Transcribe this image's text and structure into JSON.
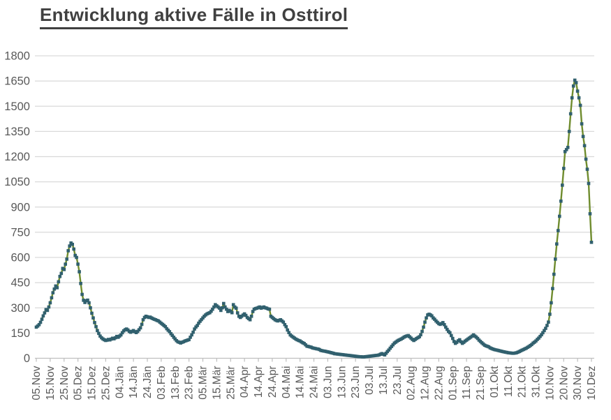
{
  "title": "Entwicklung aktive Fälle in Osttirol",
  "colors": {
    "line": "#6f8c2e",
    "marker": "#31606e",
    "grid": "#d9d9d9",
    "axis": "#bfbfbf",
    "tick_text": "#595959",
    "title_text": "#404040"
  },
  "chart_data": {
    "type": "line",
    "title": "Entwicklung aktive Fälle in Osttirol",
    "xlabel": "",
    "ylabel": "",
    "ylim": [
      0,
      1800
    ],
    "y_ticks": [
      0,
      150,
      300,
      450,
      600,
      750,
      900,
      1050,
      1200,
      1350,
      1500,
      1650,
      1800
    ],
    "grid": "horizontal",
    "legend": "none",
    "x_tick_interval_days": 10,
    "x_tick_labels": [
      "05.Nov",
      "15.Nov",
      "25.Nov",
      "05.Dez",
      "15.Dez",
      "25.Dez",
      "04.Jän",
      "14.Jän",
      "24.Jän",
      "03.Feb",
      "13.Feb",
      "23.Feb",
      "05.Mär",
      "15.Mär",
      "25.Mär",
      "04.Apr",
      "14.Apr",
      "24.Apr",
      "04.Mai",
      "14.Mai",
      "24.Mai",
      "03.Jun",
      "13.Jun",
      "23.Jun",
      "03.Jul",
      "13.Jul",
      "23.Jul",
      "02.Aug",
      "12.Aug",
      "22.Aug",
      "01.Sep",
      "11.Sep",
      "21.Sep",
      "01.Okt",
      "11.Okt",
      "21.Okt",
      "31.Okt",
      "10.Nov",
      "20.Nov",
      "30.Nov",
      "10.Dez"
    ],
    "series": [
      {
        "name": "aktive Fälle",
        "marker": "square",
        "values": [
          185,
          192,
          200,
          214,
          232,
          252,
          270,
          290,
          285,
          305,
          330,
          360,
          390,
          412,
          430,
          420,
          455,
          487,
          505,
          535,
          528,
          560,
          590,
          640,
          668,
          686,
          678,
          650,
          612,
          600,
          560,
          515,
          445,
          380,
          345,
          332,
          342,
          346,
          330,
          300,
          268,
          240,
          212,
          188,
          165,
          148,
          132,
          122,
          115,
          110,
          106,
          108,
          112,
          109,
          114,
          119,
          116,
          122,
          130,
          125,
          132,
          139,
          152,
          163,
          170,
          174,
          168,
          160,
          155,
          160,
          165,
          158,
          153,
          160,
          170,
          181,
          202,
          229,
          243,
          250,
          247,
          243,
          245,
          240,
          236,
          232,
          229,
          225,
          222,
          215,
          208,
          202,
          195,
          188,
          176,
          167,
          158,
          146,
          136,
          125,
          115,
          105,
          98,
          95,
          91,
          95,
          98,
          102,
          105,
          108,
          111,
          125,
          139,
          155,
          174,
          186,
          195,
          209,
          220,
          230,
          240,
          250,
          258,
          264,
          268,
          271,
          280,
          292,
          305,
          319,
          312,
          305,
          298,
          285,
          300,
          326,
          305,
          292,
          278,
          285,
          280,
          271,
          319,
          305,
          298,
          270,
          250,
          243,
          250,
          257,
          264,
          255,
          243,
          236,
          229,
          250,
          278,
          292,
          296,
          298,
          302,
          305,
          298,
          302,
          305,
          300,
          298,
          294,
          292,
          250,
          243,
          236,
          229,
          225,
          222,
          226,
          229,
          222,
          215,
          200,
          188,
          168,
          153,
          139,
          132,
          126,
          120,
          114,
          110,
          106,
          103,
          97,
          92,
          88,
          80,
          72,
          70,
          68,
          66,
          62,
          60,
          58,
          56,
          55,
          52,
          47,
          45,
          43,
          42,
          40,
          38,
          36,
          34,
          32,
          30,
          27,
          26,
          25,
          24,
          23,
          22,
          21,
          20,
          19,
          18,
          17,
          16,
          15,
          14,
          13,
          12,
          11,
          10,
          9,
          9,
          8,
          8,
          9,
          10,
          11,
          12,
          13,
          14,
          15,
          16,
          17,
          18,
          20,
          24,
          28,
          24,
          20,
          30,
          40,
          49,
          60,
          70,
          80,
          90,
          96,
          102,
          107,
          111,
          115,
          120,
          126,
          130,
          133,
          135,
          128,
          120,
          112,
          106,
          112,
          118,
          123,
          128,
          140,
          160,
          185,
          215,
          240,
          258,
          262,
          258,
          252,
          240,
          232,
          222,
          214,
          206,
          202,
          206,
          212,
          200,
          185,
          172,
          160,
          152,
          135,
          118,
          100,
          89,
          95,
          104,
          110,
          98,
          89,
          95,
          102,
          108,
          114,
          120,
          126,
          132,
          139,
          132,
          126,
          118,
          108,
          100,
          92,
          85,
          78,
          74,
          71,
          68,
          62,
          58,
          55,
          52,
          50,
          48,
          46,
          44,
          42,
          40,
          38,
          36,
          35,
          33,
          32,
          31,
          30,
          30,
          31,
          33,
          36,
          40,
          44,
          48,
          52,
          56,
          60,
          65,
          70,
          76,
          82,
          90,
          96,
          103,
          112,
          120,
          130,
          140,
          152,
          165,
          178,
          195,
          215,
          262,
          330,
          415,
          500,
          590,
          680,
          760,
          845,
          935,
          1030,
          1130,
          1230,
          1242,
          1255,
          1350,
          1455,
          1550,
          1620,
          1655,
          1640,
          1590,
          1550,
          1505,
          1395,
          1320,
          1265,
          1185,
          1125,
          1040,
          860,
          690
        ]
      }
    ]
  }
}
